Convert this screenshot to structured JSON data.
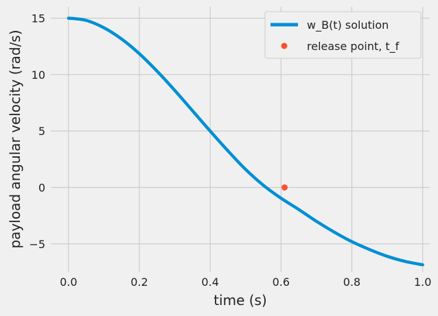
{
  "chart_data": {
    "type": "line",
    "xlabel": "time (s)",
    "ylabel": "payload angular velocity (rad/s)",
    "xlim": [
      -0.05,
      1.02
    ],
    "ylim": [
      -7.5,
      16
    ],
    "xticks": [
      0.0,
      0.2,
      0.4,
      0.6,
      0.8,
      1.0
    ],
    "xtick_labels": [
      "0.0",
      "0.2",
      "0.4",
      "0.6",
      "0.8",
      "1.0"
    ],
    "yticks": [
      -5,
      0,
      5,
      10,
      15
    ],
    "ytick_labels": [
      "−5",
      "0",
      "5",
      "10",
      "15"
    ],
    "grid": true,
    "legend_position": "top-right",
    "series": [
      {
        "name": "w_B(t) solution",
        "color": "#008fd5",
        "x": [
          0.0,
          0.05,
          0.1,
          0.15,
          0.2,
          0.25,
          0.3,
          0.35,
          0.4,
          0.45,
          0.5,
          0.55,
          0.6,
          0.65,
          0.7,
          0.75,
          0.8,
          0.85,
          0.9,
          0.95,
          1.0
        ],
        "y": [
          15.0,
          14.8,
          14.15,
          13.15,
          11.85,
          10.3,
          8.6,
          6.8,
          5.0,
          3.25,
          1.6,
          0.2,
          -0.95,
          -1.95,
          -3.0,
          -3.95,
          -4.8,
          -5.5,
          -6.1,
          -6.55,
          -6.85
        ]
      },
      {
        "name": "release point, t_f",
        "color": "#fc4f30",
        "marker": "circle",
        "x": [
          0.61
        ],
        "y": [
          0.0
        ]
      }
    ]
  }
}
